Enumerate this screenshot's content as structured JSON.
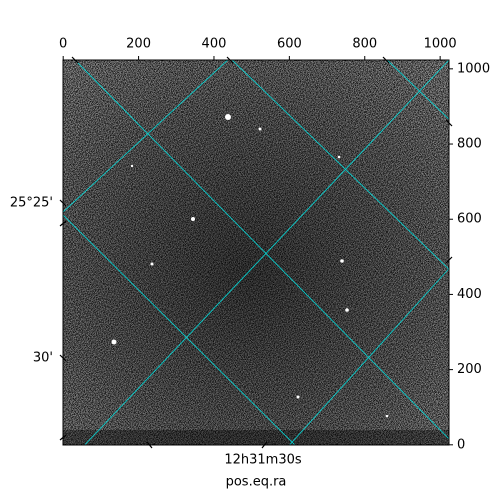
{
  "chart_data": {
    "type": "image",
    "xlim": [
      -0.5,
      1023.5
    ],
    "ylim": [
      -0.5,
      1023.5
    ],
    "xticks": [
      0,
      200,
      400,
      600,
      800,
      1000
    ],
    "yticks": [
      0,
      200,
      400,
      600,
      800,
      1000
    ],
    "world_y_labels": [
      "25°25'",
      "30'"
    ],
    "world_x_labels": [
      "12h31m30s"
    ],
    "xlabel": "pos.eq.ra",
    "grid_color": "#00e5e5"
  }
}
